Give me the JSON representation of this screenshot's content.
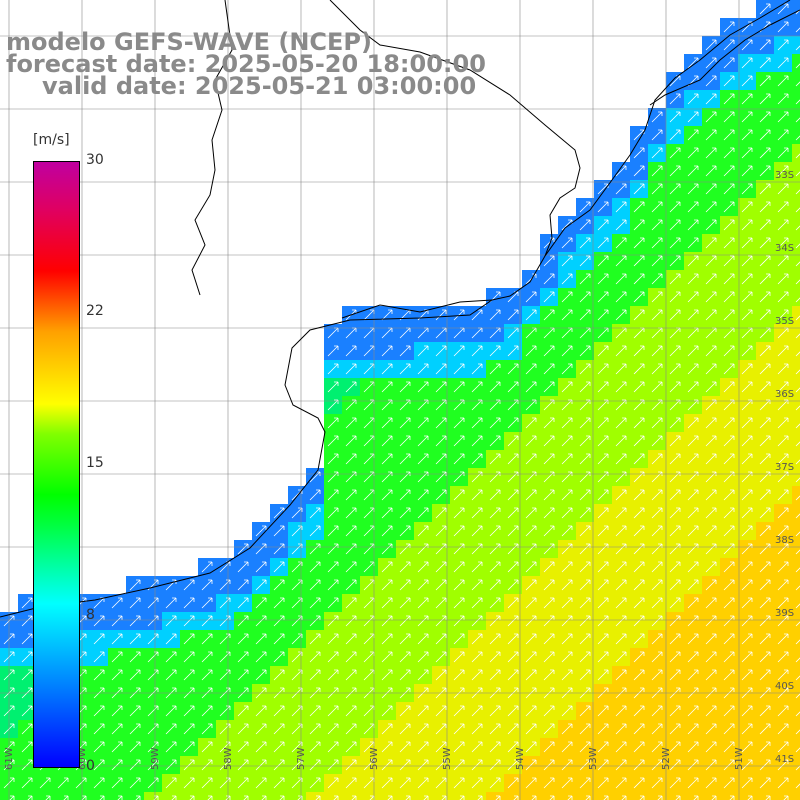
{
  "title": {
    "line1": "modelo GEFS-WAVE (NCEP)",
    "line2": "forecast date: 2025-05-20 18:00:00",
    "line3": "valid date: 2025-05-21 03:00:00"
  },
  "colorbar": {
    "unit": "[m/s]",
    "ticks": [
      "30",
      "22",
      "15",
      "8",
      "0"
    ]
  },
  "grid": {
    "lat_labels": [
      "33S",
      "34S",
      "35S",
      "36S",
      "37S",
      "38S",
      "39S",
      "40S",
      "41S"
    ],
    "lon_labels": [
      "61W",
      "60W",
      "59W",
      "58W",
      "57W",
      "56W",
      "55W",
      "54W",
      "53W",
      "52W",
      "51W"
    ]
  },
  "colors": {
    "low": "#0060ff",
    "mid_low": "#00e0ff",
    "mid": "#00ff40",
    "high": "#ffd000",
    "coast": "#000000",
    "grid": "#888888"
  }
}
